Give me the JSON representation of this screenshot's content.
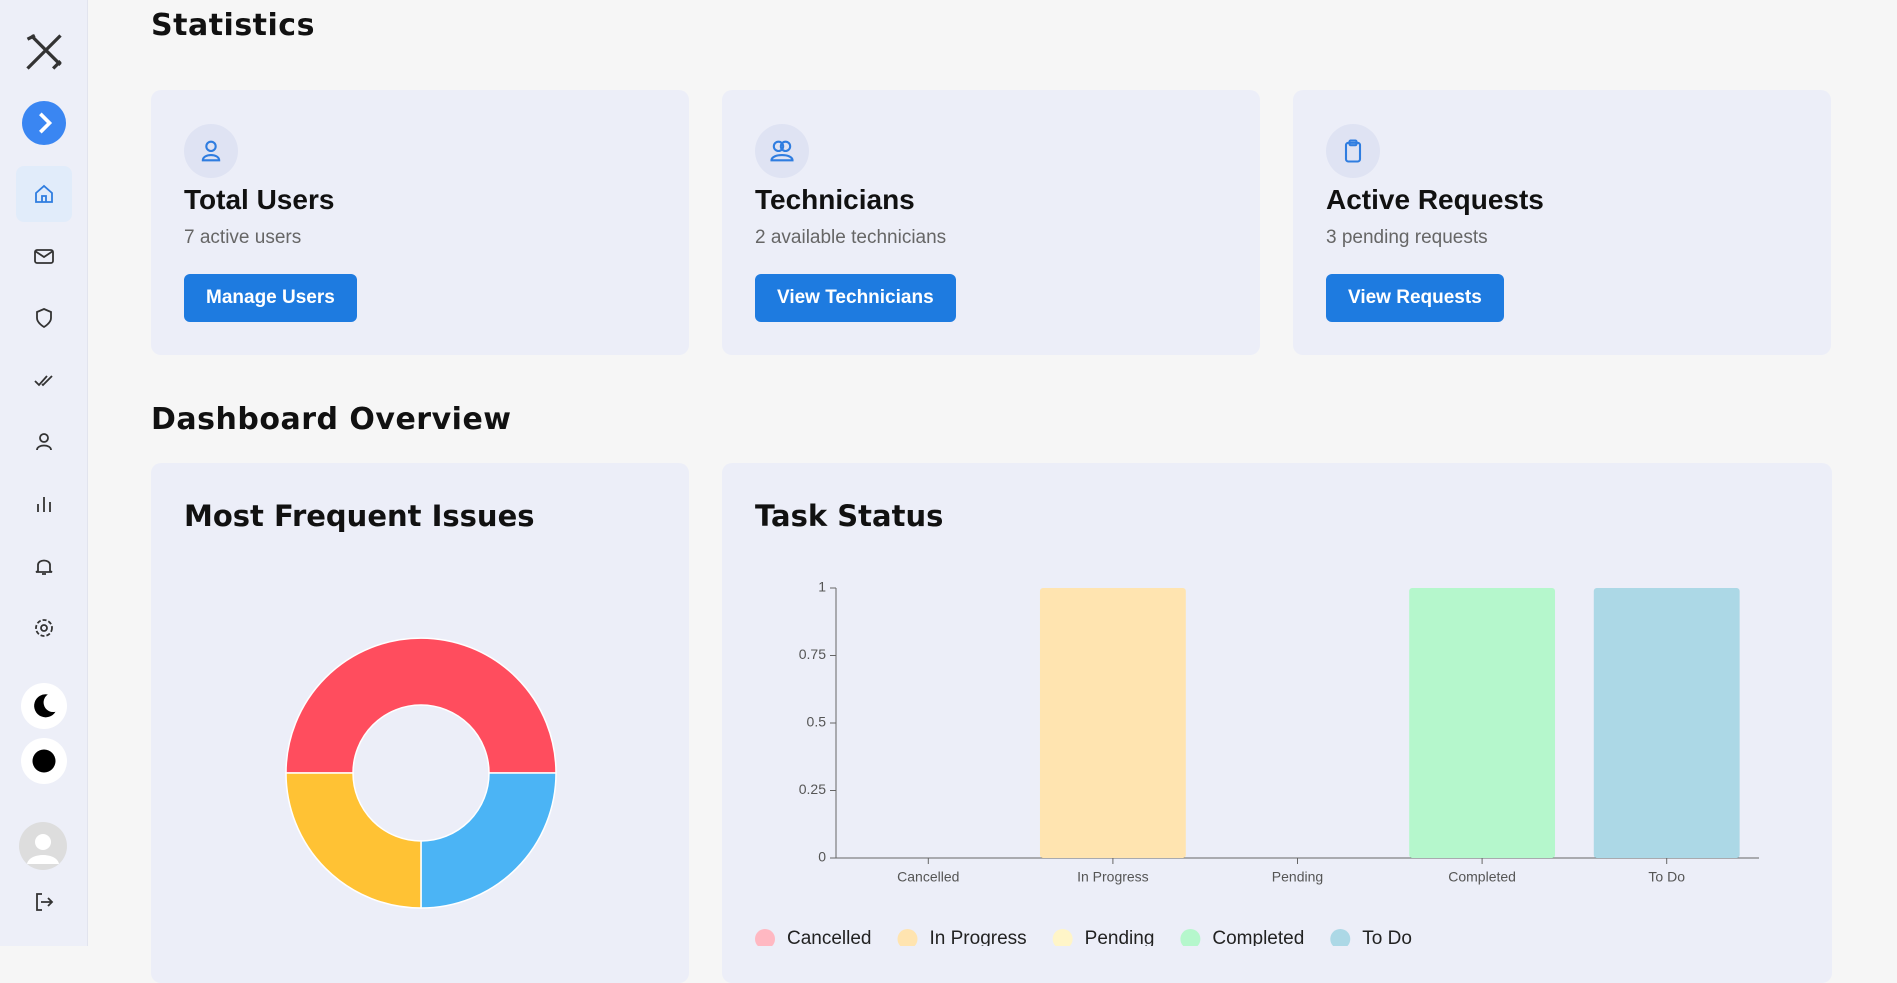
{
  "statistics": {
    "title": "Statistics",
    "cards": [
      {
        "title": "Total Users",
        "subtitle": "7 active users",
        "button": "Manage Users"
      },
      {
        "title": "Technicians",
        "subtitle": "2 available technicians",
        "button": "View Technicians"
      },
      {
        "title": "Active Requests",
        "subtitle": "3 pending requests",
        "button": "View Requests"
      }
    ]
  },
  "overview": {
    "title": "Dashboard Overview"
  },
  "chart_data": [
    {
      "type": "pie",
      "title": "Most Frequent Issues",
      "values": [
        2,
        1,
        1
      ],
      "colors": [
        "#ff4d5e",
        "#4bb4f5",
        "#ffc234"
      ]
    },
    {
      "type": "bar",
      "title": "Task Status",
      "categories": [
        "Cancelled",
        "In Progress",
        "Pending",
        "Completed",
        "To Do"
      ],
      "values": [
        0,
        1,
        0,
        1,
        1
      ],
      "colors": [
        "#ffb8c2",
        "#ffe4b0",
        "#fff5c8",
        "#b5f7cc",
        "#acd8e6"
      ],
      "ylim": [
        0,
        1
      ],
      "yticks": [
        0,
        0.25,
        0.5,
        0.75,
        1
      ],
      "legend": "bottom"
    }
  ]
}
